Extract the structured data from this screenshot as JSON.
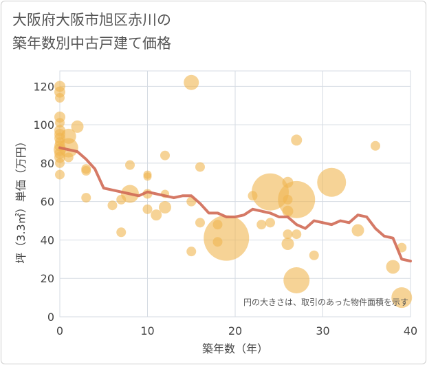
{
  "chart_data": {
    "type": "scatter",
    "title_lines": [
      "大阪府大阪市旭区赤川の",
      "築年数別中古戸建て価格"
    ],
    "xlabel": "築年数（年）",
    "ylabel": "坪（3.3㎡）単価（万円）",
    "xlim": [
      0,
      40
    ],
    "ylim": [
      0,
      128
    ],
    "xticks": [
      0,
      10,
      20,
      30,
      40
    ],
    "yticks": [
      0,
      20,
      40,
      60,
      80,
      100,
      120
    ],
    "grid": true,
    "note": "円の大きさは、取引のあった物件面積を示す",
    "colors": {
      "bubble": "#f0b550",
      "line": "#d06a55",
      "grid": "#d5dbe3"
    },
    "points": [
      {
        "x": 0,
        "y": 120,
        "s": 8
      },
      {
        "x": 0,
        "y": 117,
        "s": 8
      },
      {
        "x": 0,
        "y": 114,
        "s": 7
      },
      {
        "x": 0,
        "y": 104,
        "s": 8
      },
      {
        "x": 0,
        "y": 101,
        "s": 7
      },
      {
        "x": 0,
        "y": 97,
        "s": 8
      },
      {
        "x": 0,
        "y": 95,
        "s": 8
      },
      {
        "x": 0,
        "y": 93,
        "s": 8
      },
      {
        "x": 0,
        "y": 91,
        "s": 7
      },
      {
        "x": 0,
        "y": 89,
        "s": 8
      },
      {
        "x": 0,
        "y": 87,
        "s": 9
      },
      {
        "x": 0,
        "y": 85,
        "s": 8
      },
      {
        "x": 0,
        "y": 83,
        "s": 8
      },
      {
        "x": 0,
        "y": 80,
        "s": 7
      },
      {
        "x": 0,
        "y": 74,
        "s": 7
      },
      {
        "x": 1,
        "y": 94,
        "s": 11
      },
      {
        "x": 1,
        "y": 88,
        "s": 14
      },
      {
        "x": 1,
        "y": 83,
        "s": 7
      },
      {
        "x": 2,
        "y": 99,
        "s": 9
      },
      {
        "x": 3,
        "y": 77,
        "s": 7
      },
      {
        "x": 3,
        "y": 76,
        "s": 7
      },
      {
        "x": 3,
        "y": 62,
        "s": 7
      },
      {
        "x": 6,
        "y": 58,
        "s": 7
      },
      {
        "x": 7,
        "y": 61,
        "s": 7
      },
      {
        "x": 7,
        "y": 44,
        "s": 7
      },
      {
        "x": 8,
        "y": 79,
        "s": 7
      },
      {
        "x": 8,
        "y": 64,
        "s": 13
      },
      {
        "x": 10,
        "y": 74,
        "s": 6
      },
      {
        "x": 10,
        "y": 73,
        "s": 6
      },
      {
        "x": 10,
        "y": 64,
        "s": 7
      },
      {
        "x": 10,
        "y": 56,
        "s": 7
      },
      {
        "x": 11,
        "y": 53,
        "s": 8
      },
      {
        "x": 12,
        "y": 84,
        "s": 7
      },
      {
        "x": 12,
        "y": 64,
        "s": 6
      },
      {
        "x": 12,
        "y": 57,
        "s": 9
      },
      {
        "x": 15,
        "y": 122,
        "s": 11
      },
      {
        "x": 15,
        "y": 60,
        "s": 7
      },
      {
        "x": 15,
        "y": 34,
        "s": 7
      },
      {
        "x": 16,
        "y": 78,
        "s": 7
      },
      {
        "x": 16,
        "y": 49,
        "s": 7
      },
      {
        "x": 18,
        "y": 48,
        "s": 7
      },
      {
        "x": 18,
        "y": 39,
        "s": 7
      },
      {
        "x": 19,
        "y": 41,
        "s": 33
      },
      {
        "x": 22,
        "y": 63,
        "s": 7
      },
      {
        "x": 23,
        "y": 48,
        "s": 7
      },
      {
        "x": 24,
        "y": 65,
        "s": 27
      },
      {
        "x": 24,
        "y": 49,
        "s": 7
      },
      {
        "x": 26,
        "y": 70,
        "s": 8
      },
      {
        "x": 26,
        "y": 61,
        "s": 7
      },
      {
        "x": 26,
        "y": 55,
        "s": 8
      },
      {
        "x": 26,
        "y": 43,
        "s": 7
      },
      {
        "x": 26,
        "y": 38,
        "s": 9
      },
      {
        "x": 27,
        "y": 92,
        "s": 8
      },
      {
        "x": 27,
        "y": 61,
        "s": 27
      },
      {
        "x": 27,
        "y": 43,
        "s": 7
      },
      {
        "x": 27,
        "y": 19,
        "s": 19
      },
      {
        "x": 29,
        "y": 32,
        "s": 7
      },
      {
        "x": 31,
        "y": 70,
        "s": 21
      },
      {
        "x": 34,
        "y": 45,
        "s": 9
      },
      {
        "x": 36,
        "y": 89,
        "s": 7
      },
      {
        "x": 38,
        "y": 26,
        "s": 10
      },
      {
        "x": 39,
        "y": 36,
        "s": 7
      },
      {
        "x": 39,
        "y": 10,
        "s": 15
      }
    ],
    "trend": {
      "x": [
        0,
        1,
        2,
        3,
        4,
        5,
        6,
        7,
        8,
        9,
        10,
        11,
        12,
        13,
        14,
        15,
        16,
        17,
        18,
        19,
        20,
        21,
        22,
        23,
        24,
        25,
        26,
        27,
        28,
        29,
        30,
        31,
        32,
        33,
        34,
        35,
        36,
        37,
        38,
        39,
        40
      ],
      "y": [
        88,
        87,
        86,
        82,
        77,
        67,
        66,
        65,
        64,
        63,
        65,
        64,
        63,
        62,
        63,
        63,
        59,
        54,
        54,
        52,
        52,
        53,
        56,
        55,
        54,
        52,
        52,
        48,
        46,
        50,
        49,
        48,
        50,
        49,
        53,
        52,
        46,
        42,
        41,
        30,
        29
      ]
    }
  }
}
